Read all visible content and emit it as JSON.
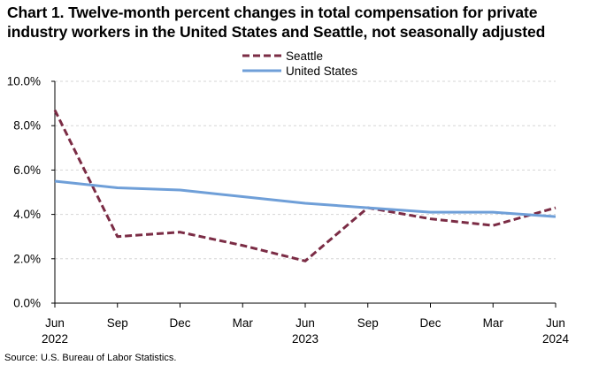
{
  "title_line1": "Chart 1. Twelve-month percent changes in total compensation for private",
  "title_line2": "industry workers in the United States and Seattle, not seasonally adjusted",
  "source": "Source: U.S. Bureau of Labor Statistics.",
  "chart_data": {
    "type": "line",
    "title": "Chart 1. Twelve-month percent changes in total compensation for private industry workers in the United States and Seattle, not seasonally adjusted",
    "x": [
      "Jun 2022",
      "Sep",
      "Dec",
      "Mar",
      "Jun 2023",
      "Sep",
      "Dec",
      "Mar",
      "Jun 2024"
    ],
    "x_tick_labels": [
      "Jun",
      "Sep",
      "Dec",
      "Mar",
      "Jun",
      "Sep",
      "Dec",
      "Mar",
      "Jun"
    ],
    "x_year_labels": [
      {
        "index": 0,
        "label": "2022"
      },
      {
        "index": 4,
        "label": "2023"
      },
      {
        "index": 8,
        "label": "2024"
      }
    ],
    "y_ticks": [
      0,
      2,
      4,
      6,
      8,
      10
    ],
    "y_tick_labels": [
      "0.0%",
      "2.0%",
      "4.0%",
      "6.0%",
      "8.0%",
      "10.0%"
    ],
    "ylim": [
      0,
      10
    ],
    "xlabel": "",
    "ylabel": "",
    "grid": true,
    "legend_position": "top-center",
    "series": [
      {
        "name": "Seattle",
        "values": [
          8.7,
          3.0,
          3.2,
          2.6,
          1.9,
          4.3,
          3.8,
          3.5,
          4.3
        ],
        "color": "#7b2c45",
        "style": "dashed"
      },
      {
        "name": "United States",
        "values": [
          5.5,
          5.2,
          5.1,
          4.8,
          4.5,
          4.3,
          4.1,
          4.1,
          3.9
        ],
        "color": "#6f9fd8",
        "style": "solid"
      }
    ]
  }
}
